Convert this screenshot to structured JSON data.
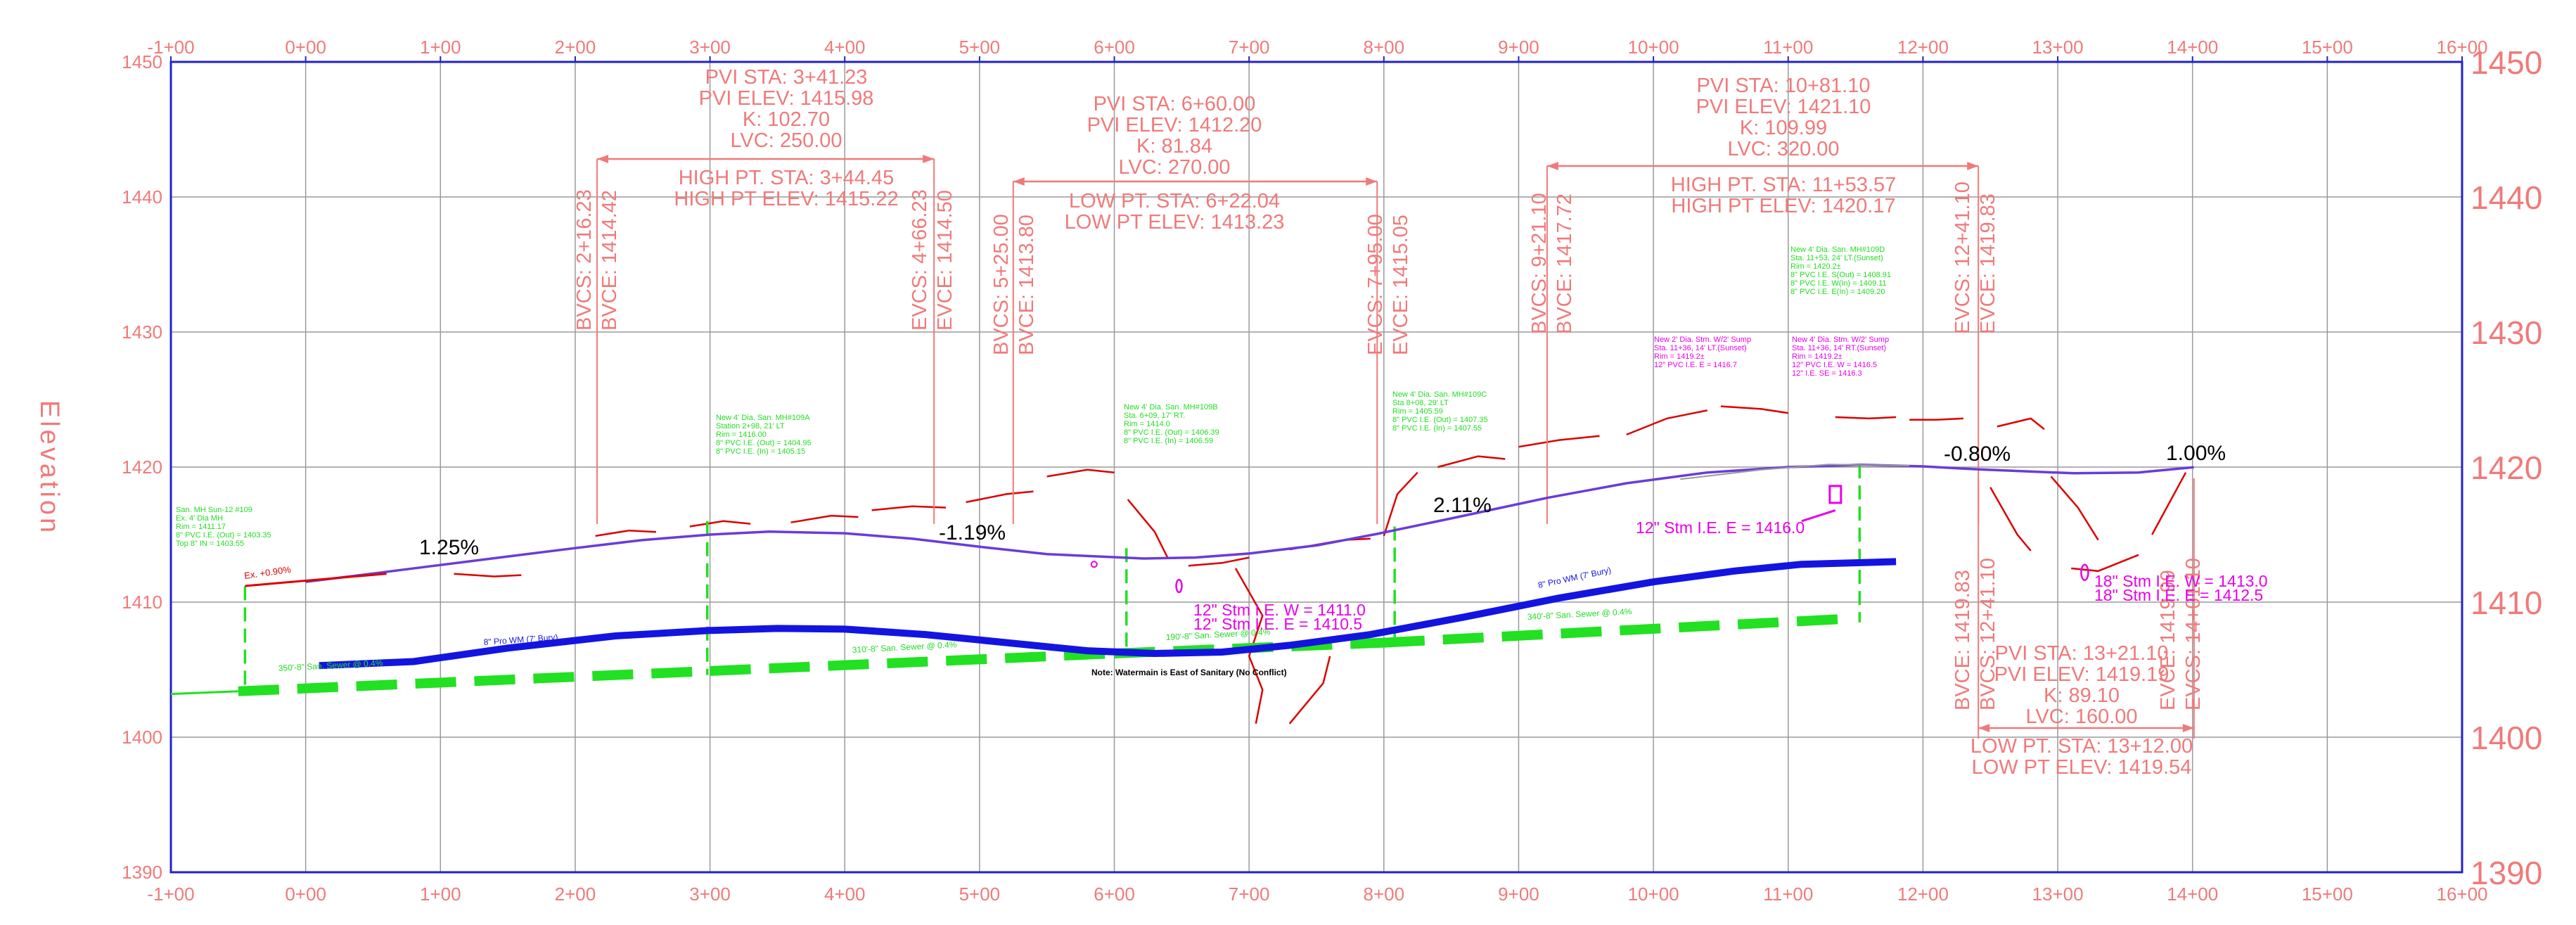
{
  "axes": {
    "y_title": "Elevation",
    "x_range": [
      -1,
      16
    ],
    "y_range": [
      1390,
      1450
    ],
    "x_ticks": [
      "-1+00",
      "0+00",
      "1+00",
      "2+00",
      "3+00",
      "4+00",
      "5+00",
      "6+00",
      "7+00",
      "8+00",
      "9+00",
      "10+00",
      "11+00",
      "12+00",
      "13+00",
      "14+00",
      "15+00",
      "16+00"
    ],
    "y_ticks": [
      1390,
      1400,
      1410,
      1420,
      1430,
      1440,
      1450
    ],
    "grid": true
  },
  "colors": {
    "label": "#f07a7a",
    "frame": "#2222cc",
    "grid": "#9a9a9a",
    "profile": "#6a3cd8",
    "watermain": "#1414e0",
    "sewer": "#22e022",
    "storm": "#e800e8",
    "ground": "#dd0000"
  },
  "curves": [
    {
      "pvi_sta": "PVI STA:  3+41.23",
      "pvi_elev": "PVI ELEV:  1415.98",
      "k": "K:  102.70",
      "lvc": "LVC:  250.00",
      "pt1": "HIGH PT. STA:  3+44.45",
      "pt2": "HIGH PT ELEV:  1415.22",
      "bvcs": "BVCS:  2+16.23",
      "bvce": "BVCE:  1414.42",
      "evcs": "EVCS:  4+66.23",
      "evce": "EVCE:  1414.50",
      "bvc_sta": 2.1623,
      "evc_sta": 4.6623
    },
    {
      "pvi_sta": "PVI STA:  6+60.00",
      "pvi_elev": "PVI ELEV:  1412.20",
      "k": "K:  81.84",
      "lvc": "LVC:  270.00",
      "pt1": "LOW PT. STA:  6+22.04",
      "pt2": "LOW PT ELEV:  1413.23",
      "bvcs": "BVCS:  5+25.00",
      "bvce": "BVCE:  1413.80",
      "evcs": "EVCS:  7+95.00",
      "evce": "EVCE:  1415.05",
      "bvc_sta": 5.25,
      "evc_sta": 7.95
    },
    {
      "pvi_sta": "PVI STA:  10+81.10",
      "pvi_elev": "PVI ELEV:  1421.10",
      "k": "K:  109.99",
      "lvc": "LVC:  320.00",
      "pt1": "HIGH PT. STA:  11+53.57",
      "pt2": "HIGH PT ELEV:  1420.17",
      "bvcs": "BVCS:  9+21.10",
      "bvce": "BVCE:  1417.72",
      "evcs": "EVCS:  12+41.10",
      "evce": "EVCE:  1419.83",
      "bvc_sta": 9.211,
      "evc_sta": 12.411
    },
    {
      "pvi_sta": "PVI STA:  13+21.10",
      "pvi_elev": "PVI ELEV:  1419.19",
      "k": "K:  89.10",
      "lvc": "LVC:  160.00",
      "pt1": "LOW PT. STA:  13+12.00",
      "pt2": "LOW PT ELEV:  1419.54",
      "bvcs": "BVCS:  12+41.10",
      "bvce": "BVCE:  1419.83",
      "evcs": "EVCS:  14+01.10",
      "evce": "EVCE:  1419.99",
      "bvc_sta": 12.411,
      "evc_sta": 14.011
    }
  ],
  "grades": [
    "1.25%",
    "-1.19%",
    "2.11%",
    "-0.80%",
    "1.00%"
  ],
  "ex_grade": "Ex. +0.90%",
  "profile_points": [
    [
      0,
      1411.5
    ],
    [
      0.5,
      1412.12
    ],
    [
      1,
      1412.75
    ],
    [
      1.5,
      1413.38
    ],
    [
      2,
      1414.0
    ],
    [
      2.5,
      1414.6
    ],
    [
      3,
      1415.0
    ],
    [
      3.44,
      1415.22
    ],
    [
      4,
      1415.1
    ],
    [
      4.5,
      1414.7
    ],
    [
      5,
      1414.1
    ],
    [
      5.5,
      1413.55
    ],
    [
      6.22,
      1413.23
    ],
    [
      6.6,
      1413.3
    ],
    [
      7,
      1413.6
    ],
    [
      7.5,
      1414.2
    ],
    [
      7.95,
      1415.05
    ],
    [
      8.5,
      1416.2
    ],
    [
      9.21,
      1417.72
    ],
    [
      9.8,
      1418.8
    ],
    [
      10.4,
      1419.6
    ],
    [
      11,
      1420.0
    ],
    [
      11.54,
      1420.17
    ],
    [
      12,
      1420.05
    ],
    [
      12.41,
      1419.83
    ],
    [
      13.12,
      1419.54
    ],
    [
      13.6,
      1419.6
    ],
    [
      14.01,
      1419.99
    ]
  ],
  "watermain_points": [
    [
      0.1,
      1405.3
    ],
    [
      0.8,
      1405.6
    ],
    [
      1.5,
      1406.6
    ],
    [
      2.3,
      1407.5
    ],
    [
      3,
      1407.9
    ],
    [
      3.5,
      1408.05
    ],
    [
      4,
      1408.0
    ],
    [
      4.6,
      1407.6
    ],
    [
      5.2,
      1407.0
    ],
    [
      5.8,
      1406.4
    ],
    [
      6.3,
      1406.2
    ],
    [
      6.8,
      1406.3
    ],
    [
      7.3,
      1406.8
    ],
    [
      7.9,
      1407.6
    ],
    [
      8.6,
      1408.9
    ],
    [
      9.3,
      1410.3
    ],
    [
      10,
      1411.5
    ],
    [
      10.6,
      1412.3
    ],
    [
      11.1,
      1412.8
    ],
    [
      11.8,
      1413.0
    ]
  ],
  "sewer_segments": [
    {
      "from": [
        -0.5,
        1403.4
      ],
      "to": [
        3,
        1404.9
      ],
      "label": "350'-8\" San. Sewer @ 0.4%"
    },
    {
      "from": [
        3,
        1404.9
      ],
      "to": [
        6,
        1406.2
      ],
      "label": "310'-8\" San. Sewer @ 0.4%"
    },
    {
      "from": [
        6,
        1406.2
      ],
      "to": [
        8,
        1407.0
      ],
      "label": "190'-8\" San. Sewer @ 0.4%"
    },
    {
      "from": [
        8,
        1407.0
      ],
      "to": [
        11.5,
        1408.8
      ],
      "label": "340'-8\" San. Sewer @ 0.4%"
    }
  ],
  "watermain_labels": [
    "8\" Pro WM (7' Bury)",
    "8\" Pro WM (7' Bury)"
  ],
  "manholes": [
    {
      "sta": -0.45,
      "lines": [
        "San. MH Sun-12  #109",
        "Ex. 4' Dia MH",
        "Rim = 1411.17",
        "8\" PVC I.E. (Out) = 1403.35",
        "Top 8\" IN = 1403.55"
      ]
    },
    {
      "sta": 2.98,
      "lines": [
        "New 4' Dia. San. MH#109A",
        "Station  2+98, 21' LT",
        "Rim = 1416.00",
        "8\" PVC I.E. (Out) = 1404.95",
        "8\" PVC I.E. (In) = 1405.15"
      ]
    },
    {
      "sta": 6.09,
      "lines": [
        "New 4' Dia. San. MH#109B",
        "Sta. 6+09, 17' RT.",
        "Rim = 1414.0",
        "8\" PVC I.E. (Out) = 1406.39",
        "8\" PVC I.E. (In) = 1406.59"
      ]
    },
    {
      "sta": 8.08,
      "lines": [
        "New 4' Dia. San. MH#109C",
        "Sta 8+08, 29' LT",
        "Rim = 1405.59",
        "8\" PVC I.E. (Out) = 1407.35",
        "8\" PVC I.E. (In) = 1407.55"
      ]
    },
    {
      "sta": 11.53,
      "lines": [
        "New 4' Dia. San. MH#109D",
        "Sta. 11+53, 24' LT.(Sunset)",
        "Rim = 1420.2±",
        "8\" PVC I.E. S(Out) = 1408.91",
        "8\" PVC I.E. W(In) = 1409.11",
        "8\" PVC I.E. E(In) = 1409.20"
      ]
    }
  ],
  "storm_structures": [
    {
      "lines": [
        "New 2' Dia. Stm. W/2' Sump",
        "Sta. 11+36, 14' LT.(Sunset)",
        "Rim = 1419.2±",
        "12\" PVC I.E. E = 1416.7"
      ]
    },
    {
      "lines": [
        "New 4' Dia. Stm. W/2' Sump",
        "Sta. 11+36, 14' RT.(Sunset)",
        "Rim = 1419.2±",
        "12\" PVC I.E. W = 1416.5",
        "12\" I.E. SE = 1416.3"
      ]
    }
  ],
  "storm_labels": [
    "12\" Stm I.E. E = 1416.0",
    "12\" Stm I.E. W = 1411.0",
    "12\" Stm I.E. E = 1410.5",
    "18\" Stm I.E. W = 1413.0",
    "18\" Stm I.E. E = 1412.5"
  ],
  "note": "Note: Watermain is East of Sanitary (No Conflict)"
}
